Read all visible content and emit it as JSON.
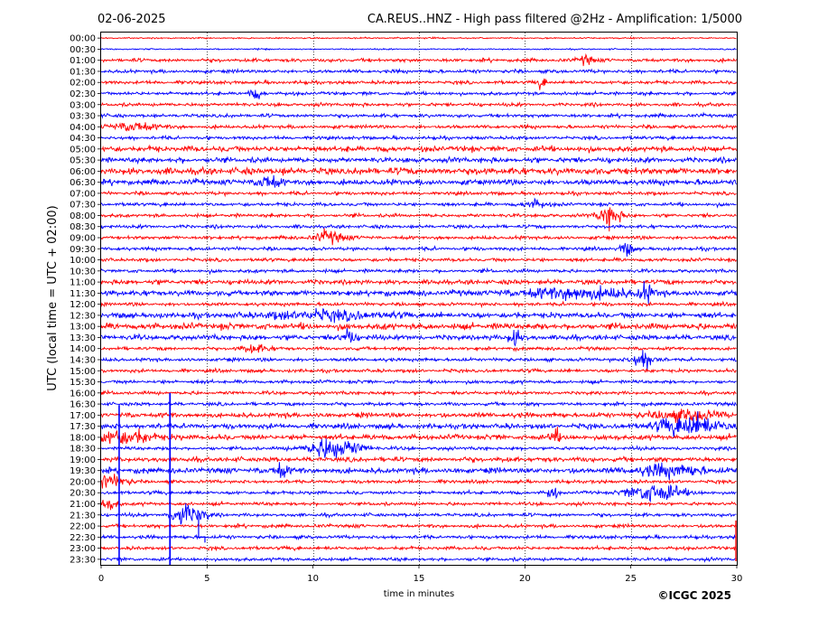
{
  "chart_data": {
    "type": "line",
    "title_left": "02-06-2025",
    "title_right": "CA.REUS..HNZ - High pass filtered @2Hz - Amplification: 1/5000",
    "xlabel": "time in minutes",
    "ylabel": "UTC (local time = UTC + 02:00)",
    "xlim": [
      0,
      30
    ],
    "x_ticks": [
      "0",
      "5",
      "10",
      "15",
      "20",
      "25",
      "30"
    ],
    "vertical_grid_minutes": [
      5,
      10,
      15,
      20,
      25
    ],
    "grid_style": "dotted",
    "trace_rows": [
      "00:00",
      "00:30",
      "01:00",
      "01:30",
      "02:00",
      "02:30",
      "03:00",
      "03:30",
      "04:00",
      "04:30",
      "05:00",
      "05:30",
      "06:00",
      "06:30",
      "07:00",
      "07:30",
      "08:00",
      "08:30",
      "09:00",
      "09:30",
      "10:00",
      "10:30",
      "11:00",
      "11:30",
      "12:00",
      "12:30",
      "13:00",
      "13:30",
      "14:00",
      "14:30",
      "15:00",
      "15:30",
      "16:00",
      "16:30",
      "17:00",
      "17:30",
      "18:00",
      "18:30",
      "19:00",
      "19:30",
      "20:00",
      "20:30",
      "21:00",
      "21:30",
      "22:00",
      "22:30",
      "23:00",
      "23:30"
    ],
    "trace_colors": [
      "#ff0000",
      "#0000ff"
    ],
    "copyright": "©ICGC 2025"
  }
}
